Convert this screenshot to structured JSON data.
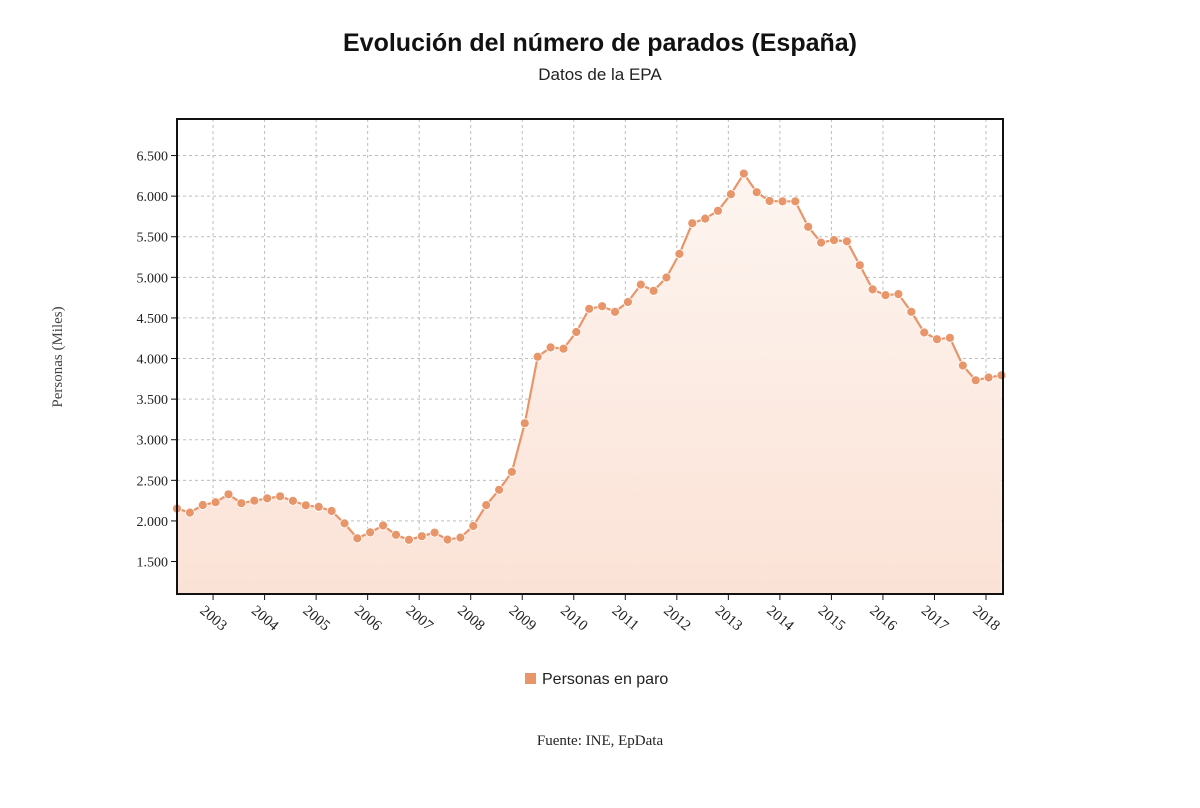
{
  "chart_data": {
    "type": "area",
    "title": "Evolución del número de parados (España)",
    "subtitle": "Datos de la EPA",
    "ylabel": "Personas (Miles)",
    "xlabel": "",
    "source": "Fuente: INE, EpData",
    "ylim": [
      1100,
      6950
    ],
    "xlim": [
      2002.3,
      2018.33
    ],
    "y_ticks": [
      1500,
      2000,
      2500,
      3000,
      3500,
      4000,
      4500,
      5000,
      5500,
      6000,
      6500
    ],
    "y_tick_labels": [
      "1.500",
      "2.000",
      "2.500",
      "3.000",
      "3.500",
      "4.000",
      "4.500",
      "5.000",
      "5.500",
      "6.000",
      "6.500"
    ],
    "x_ticks": [
      2003,
      2004,
      2005,
      2006,
      2007,
      2008,
      2009,
      2010,
      2011,
      2012,
      2013,
      2014,
      2015,
      2016,
      2017,
      2018
    ],
    "x_tick_labels": [
      "2003",
      "2004",
      "2005",
      "2006",
      "2007",
      "2008",
      "2009",
      "2010",
      "2011",
      "2012",
      "2013",
      "2014",
      "2015",
      "2016",
      "2017",
      "2018"
    ],
    "grid": true,
    "legend_position": "bottom-center",
    "series": [
      {
        "name": "Personas en paro",
        "color": "#E8956A",
        "fill_top": "#FDF5F0",
        "fill_bottom": "#FBE2D6",
        "x": [
          2002.3,
          2002.55,
          2002.8,
          2003.05,
          2003.3,
          2003.55,
          2003.8,
          2004.05,
          2004.3,
          2004.55,
          2004.8,
          2005.05,
          2005.3,
          2005.55,
          2005.8,
          2006.05,
          2006.3,
          2006.55,
          2006.8,
          2007.05,
          2007.3,
          2007.55,
          2007.8,
          2008.05,
          2008.3,
          2008.55,
          2008.8,
          2009.05,
          2009.3,
          2009.55,
          2009.8,
          2010.05,
          2010.3,
          2010.55,
          2010.8,
          2011.05,
          2011.3,
          2011.55,
          2011.8,
          2012.05,
          2012.3,
          2012.55,
          2012.8,
          2013.05,
          2013.3,
          2013.55,
          2013.8,
          2014.05,
          2014.3,
          2014.55,
          2014.8,
          2015.05,
          2015.3,
          2015.55,
          2015.8,
          2016.05,
          2016.3,
          2016.55,
          2016.8,
          2017.05,
          2017.3,
          2017.55,
          2017.8,
          2018.05,
          2018.3
        ],
        "y": [
          2152,
          2103,
          2196,
          2231,
          2328,
          2218,
          2249,
          2277,
          2303,
          2247,
          2192,
          2173,
          2122,
          1970,
          1786,
          1859,
          1944,
          1829,
          1767,
          1812,
          1856,
          1770,
          1795,
          1938,
          2195,
          2383,
          2604,
          3203,
          4023,
          4137,
          4121,
          4327,
          4612,
          4645,
          4575,
          4696,
          4910,
          4834,
          4998,
          5289,
          5667,
          5723,
          5819,
          6024,
          6278,
          6048,
          5940,
          5936,
          5935,
          5622,
          5428,
          5458,
          5444,
          5150,
          4851,
          4781,
          4794,
          4575,
          4320,
          4238,
          4255,
          3914,
          3732,
          3766,
          3793
        ]
      }
    ]
  }
}
